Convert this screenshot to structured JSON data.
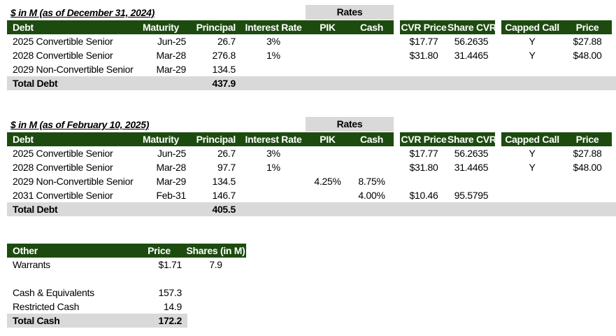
{
  "colors": {
    "header_green": "#1D4B0F",
    "header_text": "#FFFFFF",
    "band_gray": "#D9D9D9",
    "body_text": "#000000"
  },
  "rates_label": "Rates",
  "debt_columns": {
    "debt": "Debt",
    "maturity": "Maturity",
    "principal": "Principal",
    "interest_rate": "Interest Rate",
    "pik": "PIK",
    "cash": "Cash",
    "cvr_price": "CVR Price",
    "share_cvr": "Share CVR",
    "capped_call": "Capped Call",
    "price": "Price"
  },
  "t1": {
    "title": "$ in M (as of December 31, 2024)",
    "rows": [
      {
        "debt": "2025 Convertible Senior",
        "maturity": "Jun-25",
        "principal": "26.7",
        "interest_rate": "3%",
        "pik": "",
        "cash": "",
        "cvr_price": "$17.77",
        "share_cvr": "56.2635",
        "capped_call": "Y",
        "price": "$27.88"
      },
      {
        "debt": "2028 Convertible Senior",
        "maturity": "Mar-28",
        "principal": "276.8",
        "interest_rate": "1%",
        "pik": "",
        "cash": "",
        "cvr_price": "$31.80",
        "share_cvr": "31.4465",
        "capped_call": "Y",
        "price": "$48.00"
      },
      {
        "debt": "2029 Non-Convertible Senior",
        "maturity": "Mar-29",
        "principal": "134.5",
        "interest_rate": "",
        "pik": "",
        "cash": "",
        "cvr_price": "",
        "share_cvr": "",
        "capped_call": "",
        "price": ""
      }
    ],
    "total_label": "Total Debt",
    "total_principal": "437.9"
  },
  "t2": {
    "title": "$ in M (as of February 10, 2025)",
    "rows": [
      {
        "debt": "2025 Convertible Senior",
        "maturity": "Jun-25",
        "principal": "26.7",
        "interest_rate": "3%",
        "pik": "",
        "cash": "",
        "cvr_price": "$17.77",
        "share_cvr": "56.2635",
        "capped_call": "Y",
        "price": "$27.88"
      },
      {
        "debt": "2028 Convertible Senior",
        "maturity": "Mar-28",
        "principal": "97.7",
        "interest_rate": "1%",
        "pik": "",
        "cash": "",
        "cvr_price": "$31.80",
        "share_cvr": "31.4465",
        "capped_call": "Y",
        "price": "$48.00"
      },
      {
        "debt": "2029 Non-Convertible Senior",
        "maturity": "Mar-29",
        "principal": "134.5",
        "interest_rate": "",
        "pik": "4.25%",
        "cash": "8.75%",
        "cvr_price": "",
        "share_cvr": "",
        "capped_call": "",
        "price": ""
      },
      {
        "debt": "2031 Convertible Senior",
        "maturity": "Feb-31",
        "principal": "146.7",
        "interest_rate": "",
        "pik": "",
        "cash": "4.00%",
        "cvr_price": "$10.46",
        "share_cvr": "95.5795",
        "capped_call": "",
        "price": ""
      }
    ],
    "total_label": "Total Debt",
    "total_principal": "405.5"
  },
  "t3": {
    "columns": {
      "other": "Other",
      "price": "Price",
      "shares": "Shares (in M)"
    },
    "rows": [
      {
        "label": "Warrants",
        "price": "$1.71",
        "shares": "7.9"
      },
      {
        "label": "Cash & Equivalents",
        "price": "157.3",
        "shares": ""
      },
      {
        "label": "Restricted Cash",
        "price": "14.9",
        "shares": ""
      }
    ],
    "total_label": "Total Cash",
    "total_price": "172.2"
  }
}
